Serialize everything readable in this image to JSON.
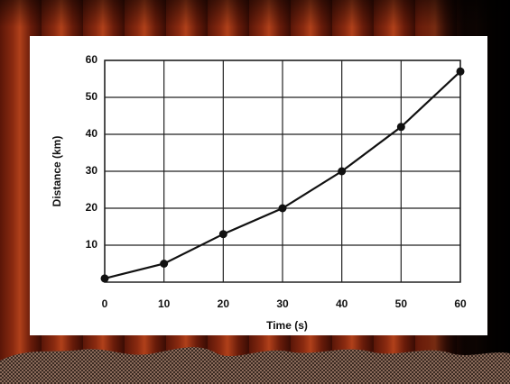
{
  "chart_data": {
    "type": "line",
    "x_label": "Time (s)",
    "y_label": "Distance (km)",
    "x": [
      0,
      10,
      20,
      30,
      40,
      50,
      60
    ],
    "values": [
      1,
      5,
      13,
      20,
      30,
      42,
      57
    ],
    "color": "#111111",
    "xlim": [
      0,
      60
    ],
    "xticks": [
      0,
      10,
      20,
      30,
      40,
      50,
      60
    ],
    "ylim": [
      0,
      60
    ],
    "yticks": [
      10,
      20,
      30,
      40,
      50,
      60
    ],
    "grid": true,
    "markers": true
  }
}
